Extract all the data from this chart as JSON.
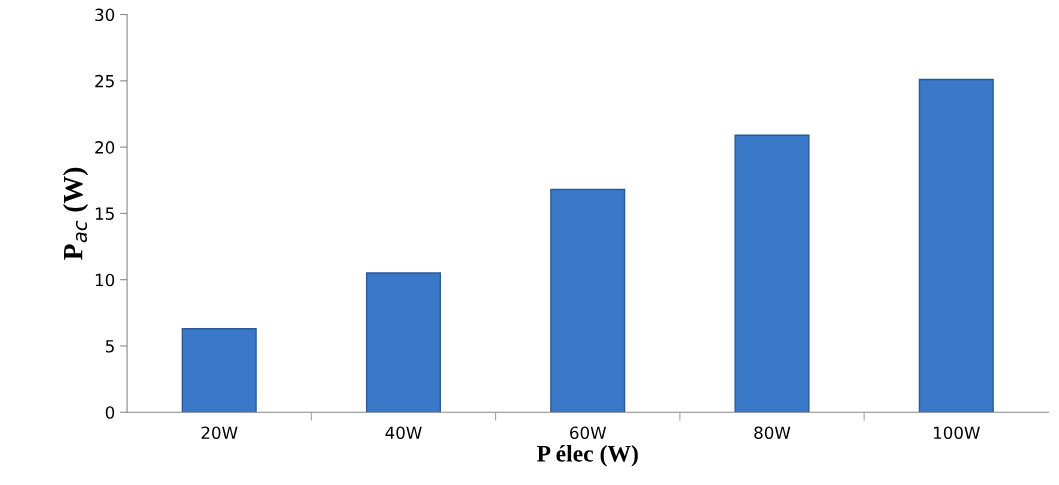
{
  "chart_data": {
    "type": "bar",
    "xlabel": "P élec (W)",
    "ylabel": "P$_{ac}$ (W)",
    "categories": [
      "20W",
      "40W",
      "60W",
      "80W",
      "100W"
    ],
    "values": [
      6.3,
      10.5,
      16.8,
      20.9,
      25.1
    ],
    "color": "#3a78c8",
    "ylim": [
      0,
      30
    ],
    "yticks": [
      0,
      5,
      10,
      15,
      20,
      25,
      30
    ],
    "grid": false,
    "legend": false
  }
}
